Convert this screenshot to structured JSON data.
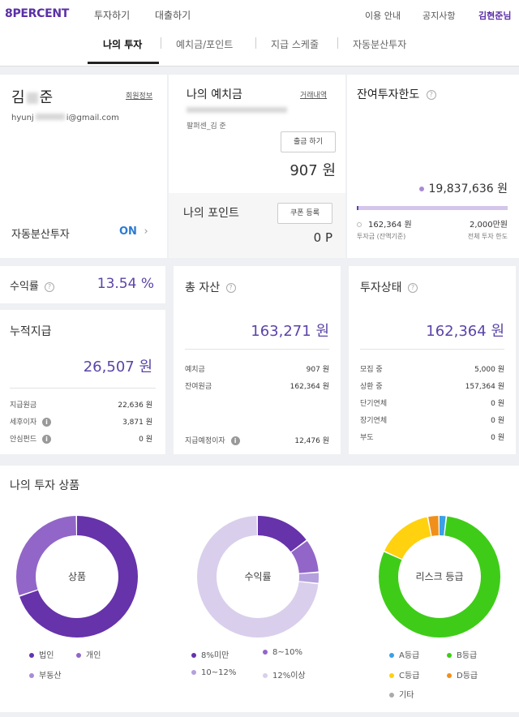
{
  "nav": {
    "logo": "8PERCENT",
    "left": [
      "투자하기",
      "대출하기"
    ],
    "right": [
      "이용 안내",
      "공지사항"
    ],
    "user": "김현준님"
  },
  "tabs": [
    "나의 투자",
    "예치금/포인트",
    "지급 스케줄",
    "자동분산투자"
  ],
  "profile": {
    "name_first": "김",
    "name_last": "준",
    "member_link": "회원정보",
    "email_prefix": "hyunj",
    "email_suffix": "i@gmail.com",
    "auto_invest_label": "자동분산투자",
    "auto_invest_status": "ON"
  },
  "deposit": {
    "title": "나의 예치금",
    "history_link": "거래내역",
    "account_holder": "팔퍼센_김 준",
    "withdraw_button": "출금 하기",
    "amount": "907 원"
  },
  "points": {
    "title": "나의 포인트",
    "coupon_button": "쿠폰 등록",
    "amount": "0 P"
  },
  "limit": {
    "title": "잔여투자한도",
    "remaining": "19,837,636 원",
    "invested": "162,364 원",
    "invested_label": "투자금 (잔액기준)",
    "total": "2,000만원",
    "total_label": "전체 투자 한도",
    "fill_fraction": 0.0081
  },
  "return_rate": {
    "label": "수익률",
    "value": "13.54 %"
  },
  "cumulative": {
    "title": "누적지급",
    "amount": "26,507 원",
    "rows": [
      {
        "label": "지급원금",
        "value": "22,636 원"
      },
      {
        "label": "세후이자",
        "value": "3,871 원"
      },
      {
        "label": "안심펀드",
        "value": "0 원"
      }
    ]
  },
  "total_assets": {
    "title": "총 자산",
    "amount": "163,271 원",
    "rows": [
      {
        "label": "예치금",
        "value": "907 원"
      },
      {
        "label": "잔여원금",
        "value": "162,364 원"
      }
    ],
    "expected_label": "지급예정이자",
    "expected_value": "12,476 원"
  },
  "status": {
    "title": "투자상태",
    "amount": "162,364 원",
    "rows": [
      {
        "label": "모집 중",
        "value": "5,000 원"
      },
      {
        "label": "상환 중",
        "value": "157,364 원"
      },
      {
        "label": "단기연체",
        "value": "0 원"
      },
      {
        "label": "장기연체",
        "value": "0 원"
      },
      {
        "label": "부도",
        "value": "0 원"
      }
    ]
  },
  "products": {
    "title": "나의 투자 상품",
    "charts": [
      {
        "center": "상품",
        "segments": [
          {
            "name": "법인",
            "value": 70,
            "color": "#6633aa"
          },
          {
            "name": "개인",
            "value": 30,
            "color": "#9266c8"
          },
          {
            "name": "부동산",
            "value": 0,
            "color": "#a98bd6"
          }
        ]
      },
      {
        "center": "수익률",
        "segments": [
          {
            "name": "8%미만",
            "value": 15,
            "color": "#6633aa"
          },
          {
            "name": "8~10%",
            "value": 9,
            "color": "#9266c8"
          },
          {
            "name": "10~12%",
            "value": 3,
            "color": "#b4a0dc"
          },
          {
            "name": "12%이상",
            "value": 73,
            "color": "#d9cfec"
          }
        ]
      },
      {
        "center": "리스크 등급",
        "segments": [
          {
            "name": "A등급",
            "value": 2,
            "color": "#3aa0e8"
          },
          {
            "name": "B등급",
            "value": 80,
            "color": "#3fcc19"
          },
          {
            "name": "C등급",
            "value": 15,
            "color": "#ffd10f"
          },
          {
            "name": "D등급",
            "value": 3,
            "color": "#f0901a"
          },
          {
            "name": "기타",
            "value": 0,
            "color": "#aaaaaa"
          }
        ]
      }
    ]
  }
}
